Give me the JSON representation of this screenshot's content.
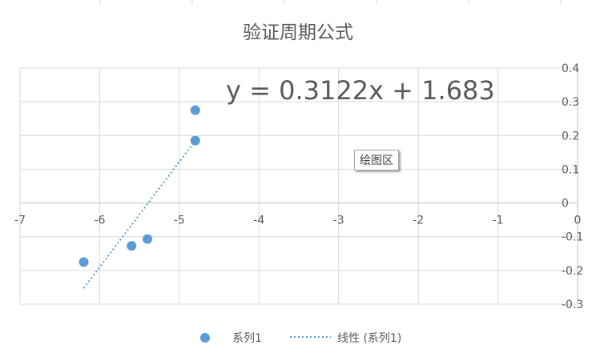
{
  "chart_data": {
    "type": "scatter",
    "title": "验证周期公式",
    "xlim": [
      -7,
      0
    ],
    "ylim": [
      -0.3,
      0.4
    ],
    "x_ticks": [
      -7,
      -6,
      -5,
      -4,
      -3,
      -2,
      -1,
      0
    ],
    "y_ticks": [
      -0.3,
      -0.2,
      -0.1,
      0,
      0.1,
      0.2,
      0.3,
      0.4
    ],
    "x_tick_labels": [
      "-7",
      "-6",
      "-5",
      "-4",
      "-3",
      "-2",
      "-1",
      "0"
    ],
    "y_tick_labels": [
      "-0.3",
      "-0.2",
      "-0.1",
      "0",
      "0.1",
      "0.2",
      "0.3",
      "0.4"
    ],
    "grid": true,
    "y_axis_position": "right",
    "legend_position": "bottom",
    "series": [
      {
        "name": "系列1",
        "color": "#5b9bd5",
        "points": [
          {
            "x": -6.2,
            "y": -0.175
          },
          {
            "x": -5.6,
            "y": -0.127
          },
          {
            "x": -5.4,
            "y": -0.107
          },
          {
            "x": -4.8,
            "y": 0.185
          },
          {
            "x": -4.8,
            "y": 0.275
          }
        ]
      }
    ],
    "trendline": {
      "name": "线性 (系列1)",
      "type": "linear",
      "slope": 0.3122,
      "intercept": 1.683,
      "x_range": [
        -6.2,
        -4.8
      ],
      "style": "dotted",
      "color": "#5b9bd5",
      "equation_label": "y = 0.3122x + 1.683"
    }
  },
  "tooltip": {
    "label": "绘图区"
  }
}
